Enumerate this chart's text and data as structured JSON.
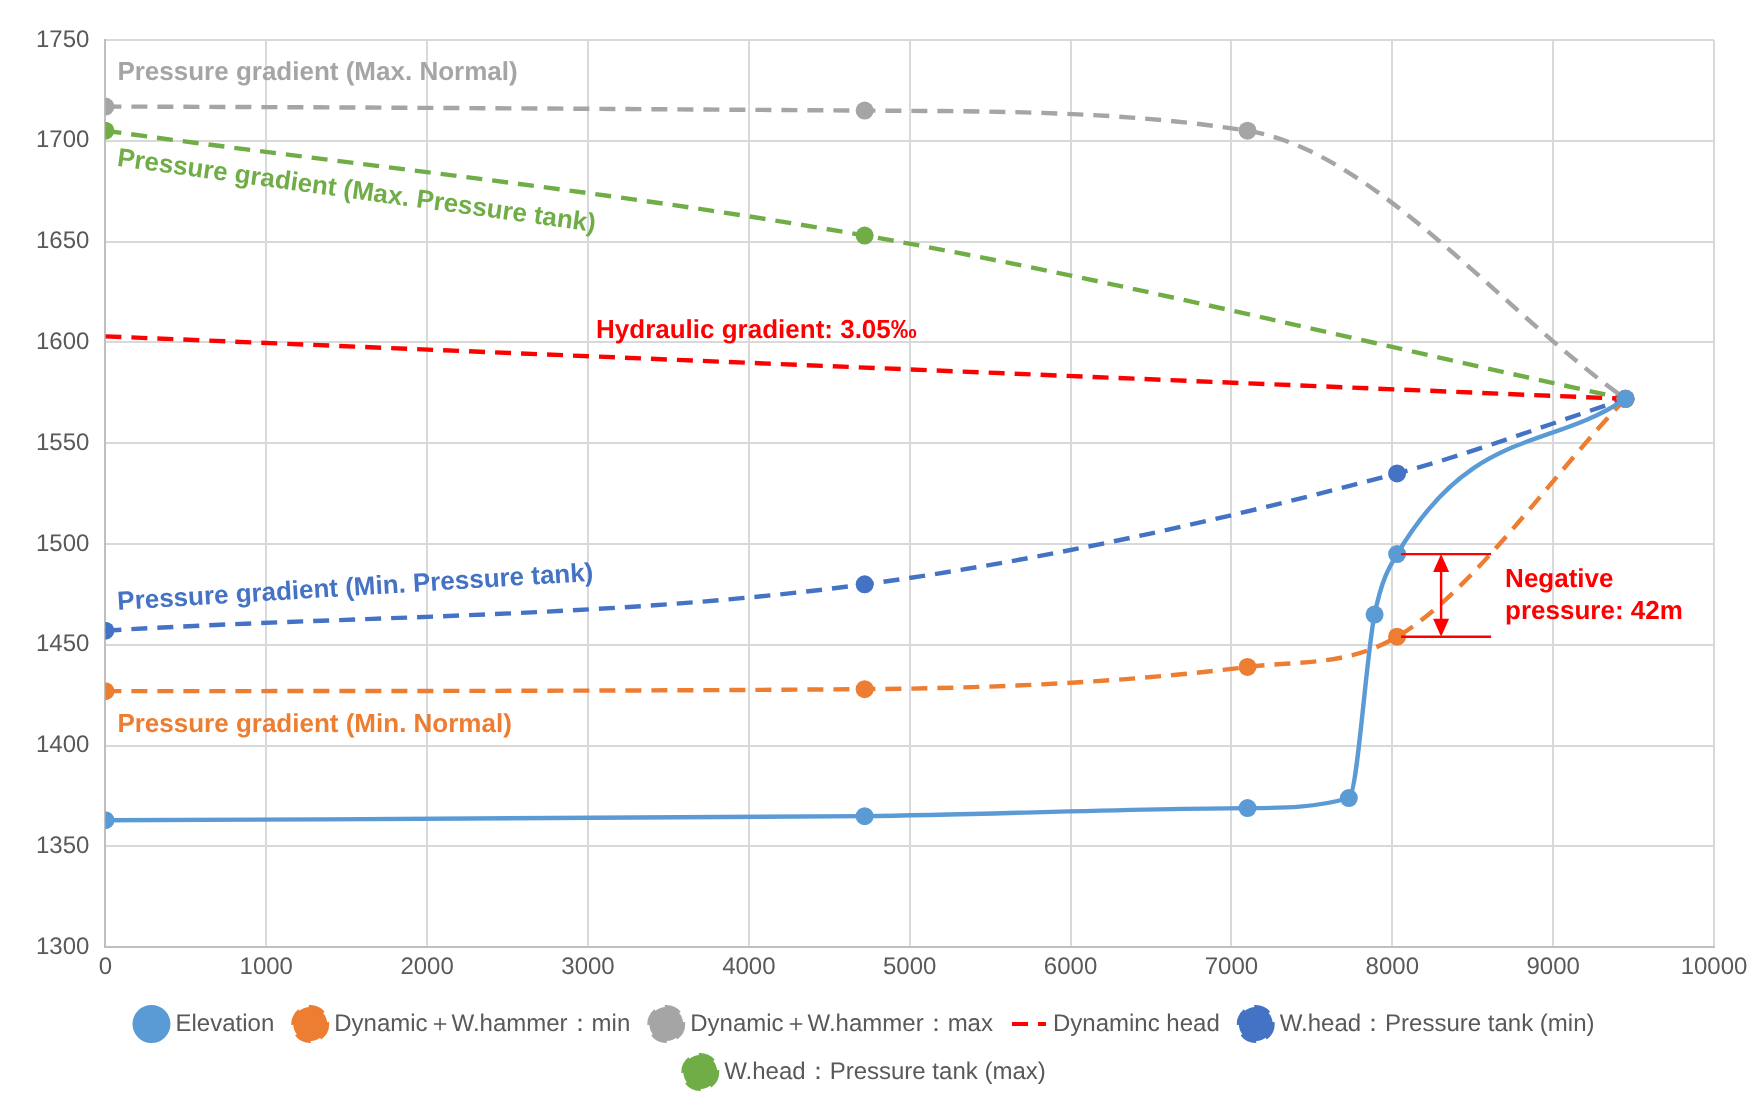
{
  "chart_data": {
    "type": "line",
    "xlim": [
      0,
      10000
    ],
    "xticks": [
      0,
      1000,
      2000,
      3000,
      4000,
      5000,
      6000,
      7000,
      8000,
      9000,
      10000
    ],
    "ylim": [
      1300,
      1750
    ],
    "yticks": [
      1300,
      1350,
      1400,
      1450,
      1500,
      1550,
      1600,
      1650,
      1700,
      1750
    ],
    "grid": true,
    "legend": "bottom",
    "series": [
      {
        "name": "Elevation",
        "color": "#5b9bd5",
        "type": "line",
        "line_style": "solid",
        "marker": "circle",
        "x": [
          0,
          4720,
          7100,
          7730,
          7890,
          8030,
          9450
        ],
        "values": [
          1363,
          1365,
          1369,
          1374,
          1465,
          1495,
          1572
        ]
      },
      {
        "name": "Dynamic＋W.hammer：min",
        "color": "#ed7d31",
        "type": "line",
        "line_style": "dashed",
        "marker": "circle",
        "x": [
          0,
          4720,
          7100,
          8030,
          9450
        ],
        "values": [
          1427,
          1428,
          1439,
          1454,
          1572
        ]
      },
      {
        "name": "Dynamic＋W.hammer：max",
        "color": "#a5a5a5",
        "type": "line",
        "line_style": "dashed",
        "marker": "circle",
        "x": [
          0,
          4720,
          7100,
          9450
        ],
        "values": [
          1717,
          1715,
          1705,
          1572
        ]
      },
      {
        "name": "Dynaminc head",
        "color": "#ff0000",
        "type": "line",
        "line_style": "dashed",
        "marker": "none",
        "x": [
          0,
          9450
        ],
        "values": [
          1603,
          1572
        ]
      },
      {
        "name": "W.head：Pressure tank (min)",
        "color": "#4472c4",
        "type": "line",
        "line_style": "dashed",
        "marker": "circle",
        "x": [
          0,
          4720,
          8030,
          9450
        ],
        "values": [
          1457,
          1480,
          1535,
          1572
        ]
      },
      {
        "name": "W.head：Pressure tank (max)",
        "color": "#70ad47",
        "type": "line",
        "line_style": "dashed",
        "marker": "circle",
        "x": [
          0,
          4720,
          9450
        ],
        "values": [
          1705,
          1653,
          1572
        ]
      }
    ],
    "annotations": [
      "Pressure gradient (Max. Normal)",
      "Pressure gradient (Max. Pressure tank)",
      "Hydraulic gradient: 3.05‰",
      "Pressure gradient (Min. Pressure tank)",
      "Pressure gradient (Min. Normal)",
      "Negative\npressure: 42m"
    ]
  }
}
